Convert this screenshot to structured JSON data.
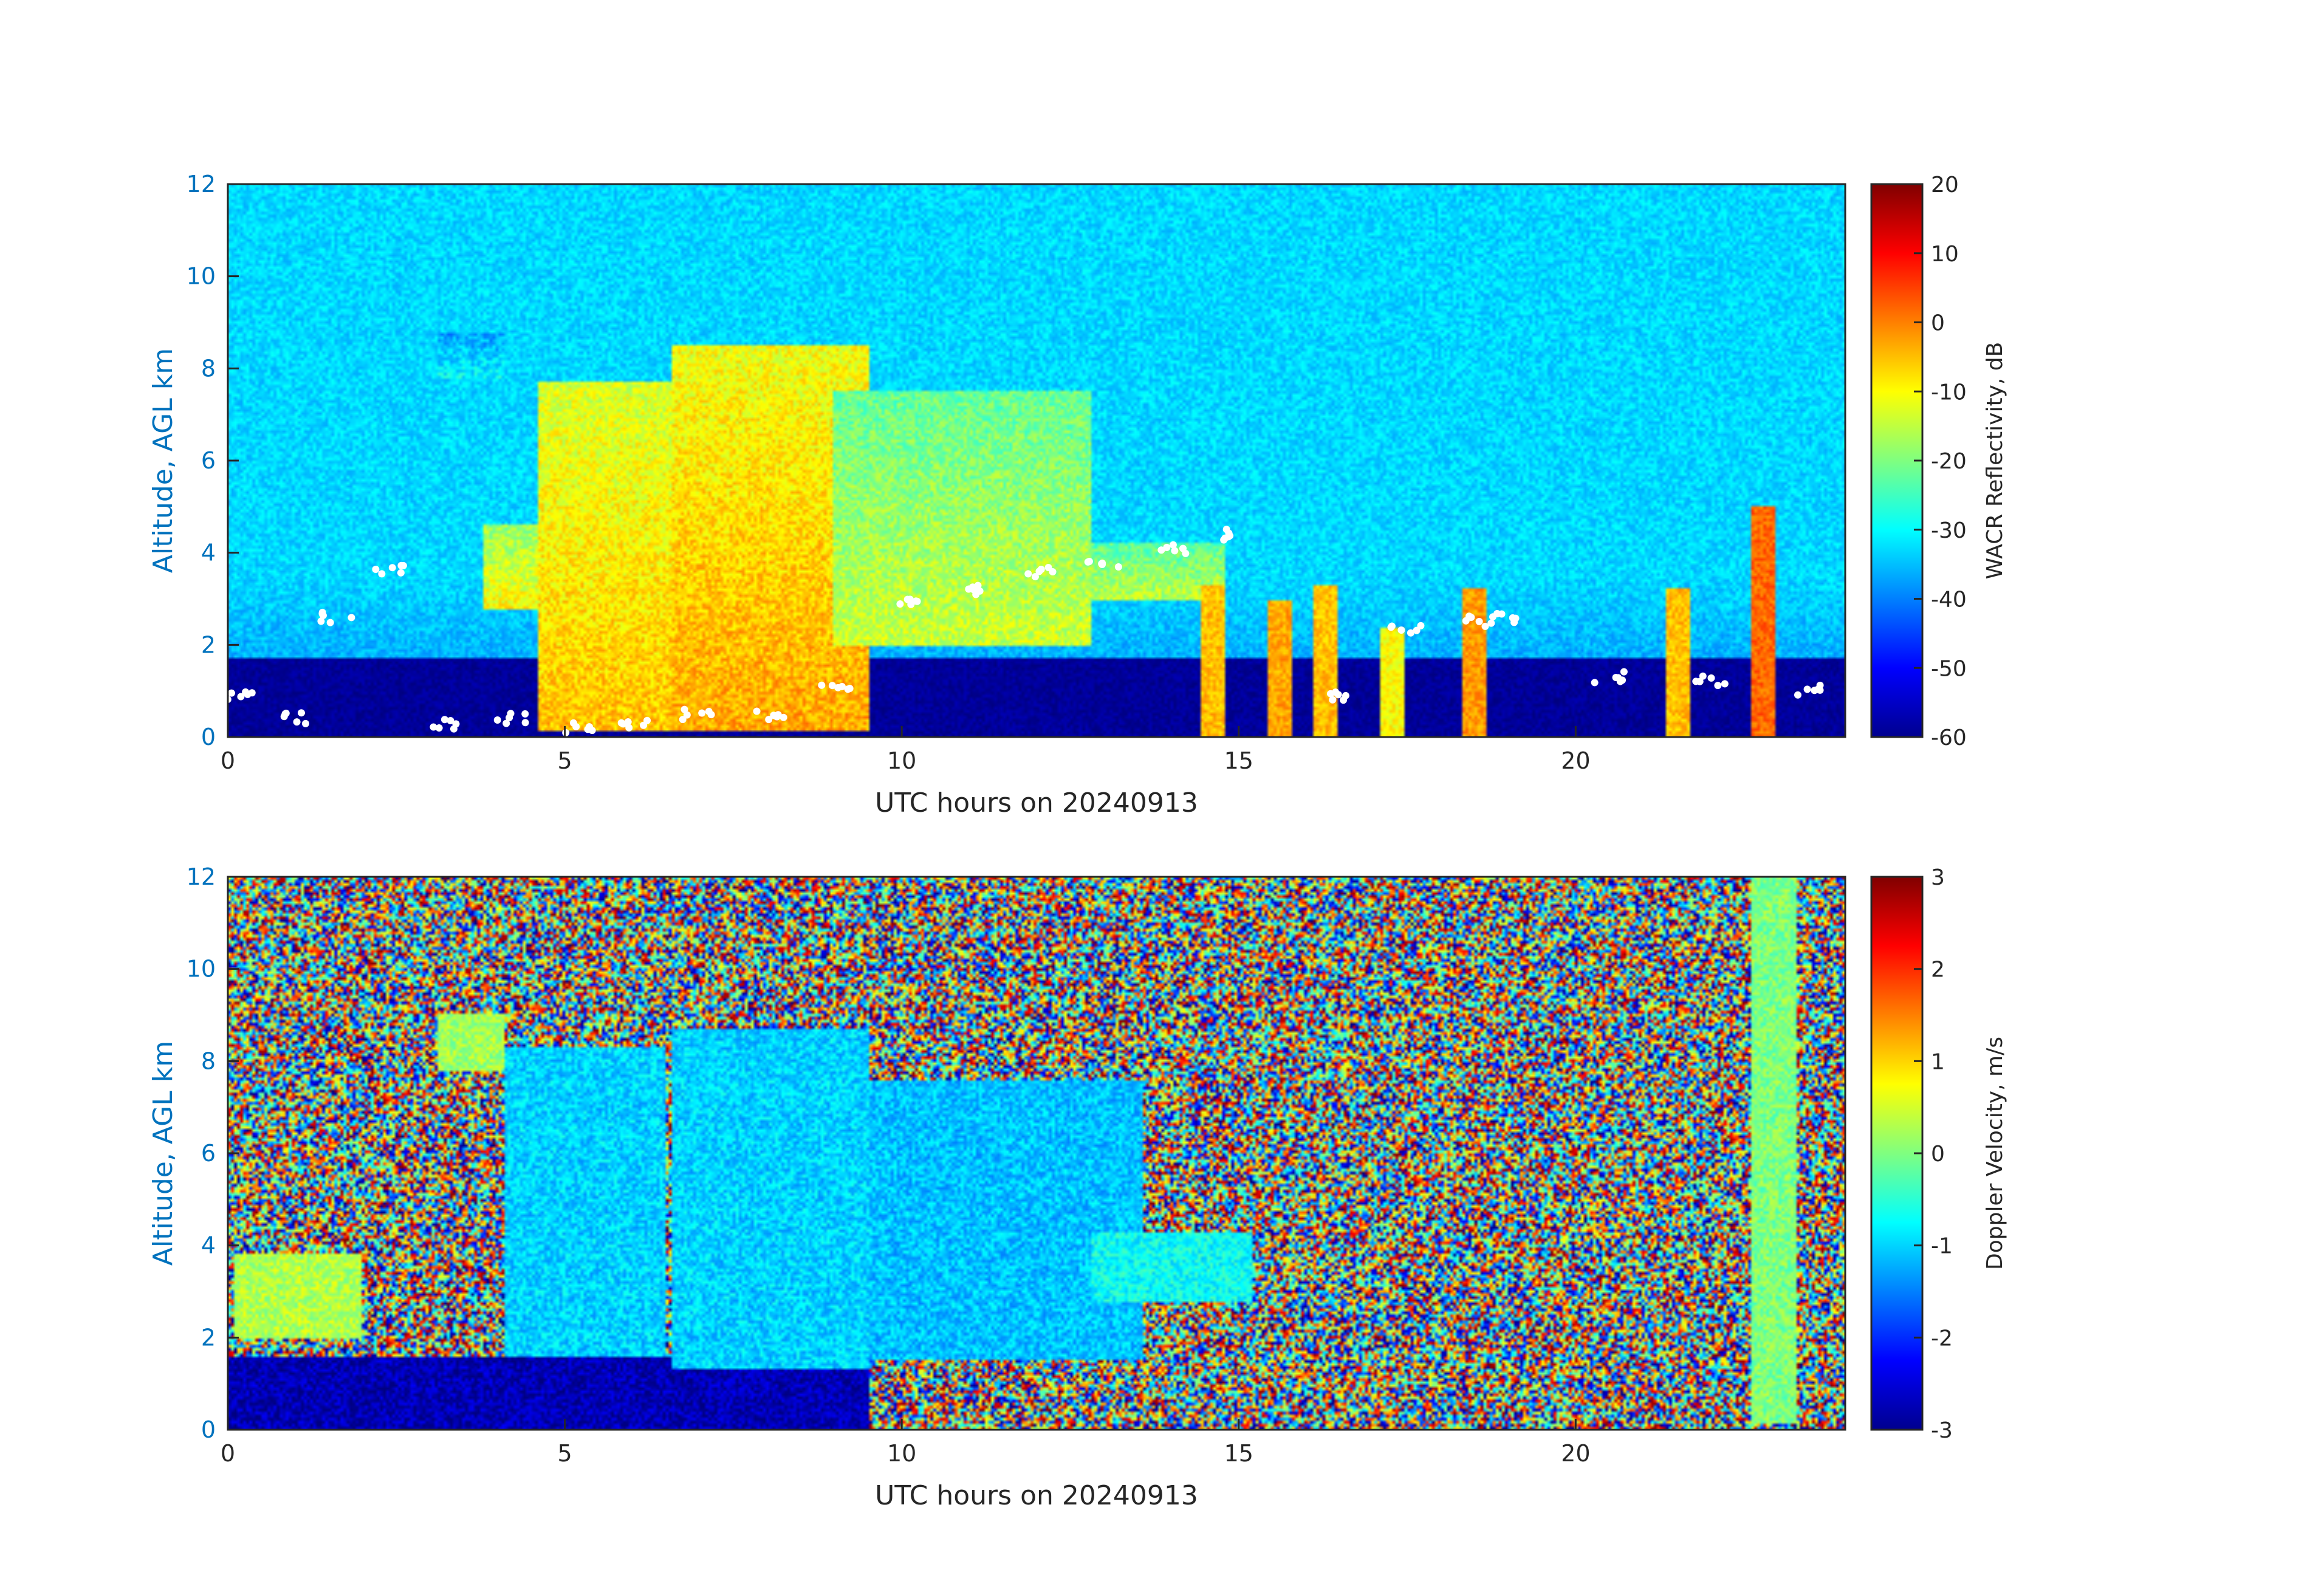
{
  "chart_data": [
    {
      "type": "heatmap",
      "title": "",
      "xlabel": "UTC hours on 20240913",
      "ylabel": "Altitude, AGL km",
      "xlim": [
        0,
        24
      ],
      "ylim": [
        0,
        12
      ],
      "xticks": [
        0,
        5,
        10,
        15,
        20
      ],
      "yticks": [
        0,
        2,
        4,
        6,
        8,
        10,
        12
      ],
      "colormap": "jet",
      "colorbar": {
        "label": "WACR Reflectivity, dB",
        "range": [
          -60,
          20
        ],
        "ticks": [
          -60,
          -50,
          -40,
          -30,
          -20,
          -10,
          0,
          10,
          20
        ]
      },
      "background_value": -33,
      "near_surface_layer": {
        "top_km": 1.7,
        "value": -58
      },
      "cloud_regions": [
        {
          "x0": 3.8,
          "x1": 5.0,
          "y0": 2.8,
          "y1": 4.6,
          "value": -10
        },
        {
          "x0": 4.6,
          "x1": 6.6,
          "y0": 0.1,
          "y1": 7.7,
          "value": -5
        },
        {
          "x0": 6.6,
          "x1": 9.5,
          "y0": 0.1,
          "y1": 8.5,
          "value": -3
        },
        {
          "x0": 9.0,
          "x1": 12.8,
          "y0": 2.0,
          "y1": 7.5,
          "value": -14
        },
        {
          "x0": 12.8,
          "x1": 14.8,
          "y0": 3.0,
          "y1": 4.2,
          "value": -15
        },
        {
          "x0": 3.1,
          "x1": 4.1,
          "y0": 7.8,
          "y1": 8.8,
          "value": -30
        }
      ],
      "convective_cells": [
        {
          "x": 14.6,
          "top_km": 3.3,
          "value": -5
        },
        {
          "x": 15.6,
          "top_km": 3.0,
          "value": -3
        },
        {
          "x": 16.3,
          "top_km": 3.3,
          "value": -5
        },
        {
          "x": 17.3,
          "top_km": 2.4,
          "value": -10
        },
        {
          "x": 18.5,
          "top_km": 3.2,
          "value": -2
        },
        {
          "x": 21.5,
          "top_km": 3.2,
          "value": -5
        },
        {
          "x": 22.8,
          "top_km": 5.0,
          "value": 2
        }
      ],
      "cloud_base_points_km": [
        [
          0.2,
          0.9
        ],
        [
          1.0,
          0.4
        ],
        [
          1.6,
          2.6
        ],
        [
          2.4,
          3.6
        ],
        [
          3.2,
          0.3
        ],
        [
          4.2,
          0.4
        ],
        [
          5.2,
          0.2
        ],
        [
          6.0,
          0.3
        ],
        [
          7.0,
          0.5
        ],
        [
          8.0,
          0.5
        ],
        [
          9.0,
          1.1
        ],
        [
          10.0,
          3.0
        ],
        [
          11.0,
          3.2
        ],
        [
          12.0,
          3.6
        ],
        [
          13.0,
          3.8
        ],
        [
          14.0,
          4.1
        ],
        [
          15.0,
          4.4
        ],
        [
          16.5,
          0.9
        ],
        [
          17.5,
          2.3
        ],
        [
          18.5,
          2.5
        ],
        [
          19.0,
          2.6
        ],
        [
          20.5,
          1.3
        ],
        [
          22.0,
          1.2
        ],
        [
          23.5,
          1.0
        ]
      ]
    },
    {
      "type": "heatmap",
      "title": "",
      "xlabel": "UTC hours on 20240913",
      "ylabel": "Altitude, AGL km",
      "xlim": [
        0,
        24
      ],
      "ylim": [
        0,
        12
      ],
      "xticks": [
        0,
        5,
        10,
        15,
        20
      ],
      "yticks": [
        0,
        2,
        4,
        6,
        8,
        10,
        12
      ],
      "colormap": "jet",
      "colorbar": {
        "label": "Doppler Velocity, m/s",
        "range": [
          -3,
          3
        ],
        "ticks": [
          -3,
          -2,
          -1,
          0,
          1,
          2,
          3
        ]
      },
      "background": "noise",
      "near_surface_layer": {
        "top_km": 1.6,
        "value": -2.7
      },
      "cloud_regions": [
        {
          "x0": 4.1,
          "x1": 6.5,
          "y0": 1.6,
          "y1": 8.3,
          "value": -1.0
        },
        {
          "x0": 6.6,
          "x1": 9.5,
          "y0": 1.3,
          "y1": 8.7,
          "value": -1.0
        },
        {
          "x0": 9.5,
          "x1": 13.6,
          "y0": 1.5,
          "y1": 7.6,
          "value": -1.1
        },
        {
          "x0": 12.8,
          "x1": 15.2,
          "y0": 2.8,
          "y1": 4.3,
          "value": -0.7
        },
        {
          "x0": 3.1,
          "x1": 4.1,
          "y0": 7.8,
          "y1": 9.0,
          "value": 0.2
        },
        {
          "x0": 0.1,
          "x1": 2.0,
          "y0": 2.0,
          "y1": 3.8,
          "value": 0.3
        },
        {
          "x0": 22.6,
          "x1": 23.3,
          "y0": 0.1,
          "y1": 12.0,
          "value": 0.0
        }
      ]
    }
  ]
}
